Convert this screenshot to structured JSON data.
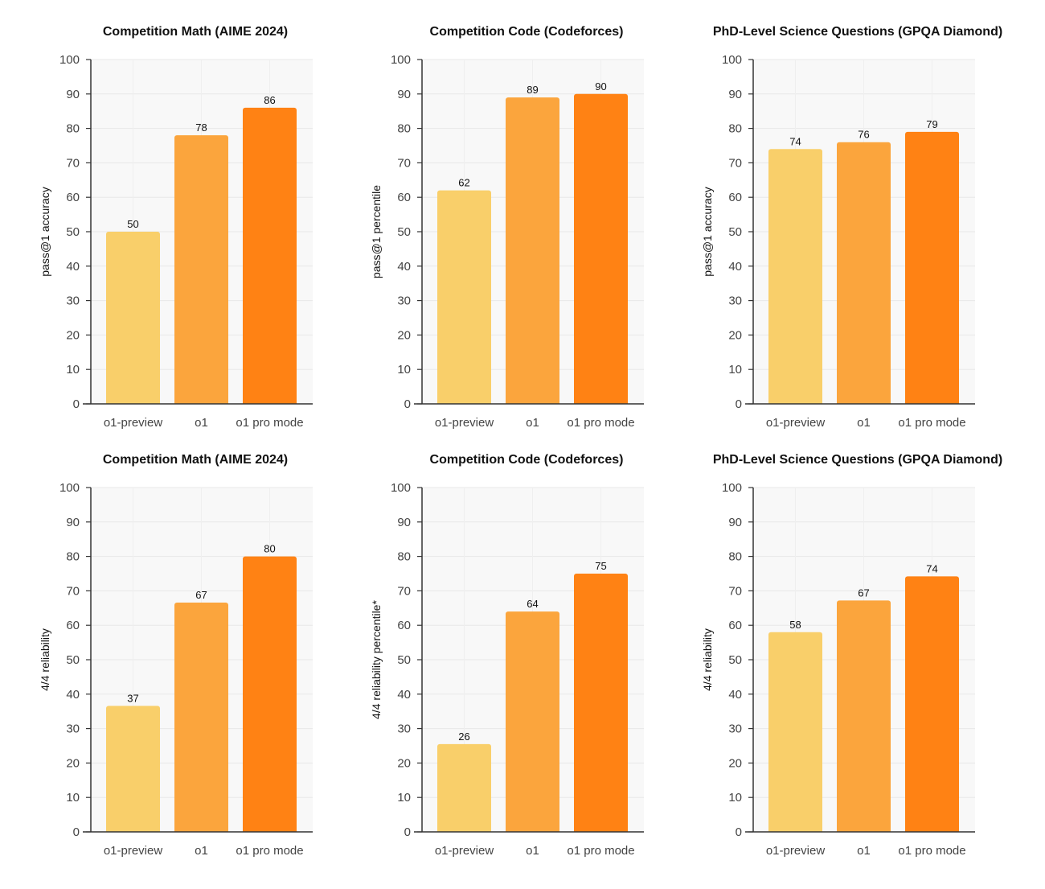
{
  "colors": {
    "o1-preview": "#F9CF6A",
    "o1": "#FBA53D",
    "o1 pro mode": "#FF8214",
    "plot_bg": "#F8F8F8",
    "grid": "#E8E8E8",
    "axis": "#333333",
    "text": "#111111",
    "tick_text": "#444444"
  },
  "chart_data": [
    {
      "type": "bar",
      "title": "Competition Math (AIME 2024)",
      "ylabel": "pass@1 accuracy",
      "xlabel": "",
      "categories": [
        "o1-preview",
        "o1",
        "o1 pro mode"
      ],
      "values": [
        50,
        78,
        86
      ],
      "data_labels": [
        "50",
        "78",
        "86"
      ],
      "ylim": [
        0,
        100
      ],
      "yticks": [
        0,
        10,
        20,
        30,
        40,
        50,
        60,
        70,
        80,
        90,
        100
      ],
      "grid": true
    },
    {
      "type": "bar",
      "title": "Competition Code (Codeforces)",
      "ylabel": "pass@1 percentile",
      "xlabel": "",
      "categories": [
        "o1-preview",
        "o1",
        "o1 pro mode"
      ],
      "values": [
        62,
        89,
        90
      ],
      "data_labels": [
        "62",
        "89",
        "90"
      ],
      "ylim": [
        0,
        100
      ],
      "yticks": [
        0,
        10,
        20,
        30,
        40,
        50,
        60,
        70,
        80,
        90,
        100
      ],
      "grid": true
    },
    {
      "type": "bar",
      "title": "PhD-Level Science Questions (GPQA Diamond)",
      "ylabel": "pass@1 accuracy",
      "xlabel": "",
      "categories": [
        "o1-preview",
        "o1",
        "o1 pro mode"
      ],
      "values": [
        74,
        76,
        79
      ],
      "data_labels": [
        "74",
        "76",
        "79"
      ],
      "ylim": [
        0,
        100
      ],
      "yticks": [
        0,
        10,
        20,
        30,
        40,
        50,
        60,
        70,
        80,
        90,
        100
      ],
      "grid": true
    },
    {
      "type": "bar",
      "title": "Competition Math (AIME 2024)",
      "ylabel": "4/4 reliability",
      "xlabel": "",
      "categories": [
        "o1-preview",
        "o1",
        "o1 pro mode"
      ],
      "values": [
        36.6,
        66.6,
        80
      ],
      "data_labels": [
        "37",
        "67",
        "80"
      ],
      "ylim": [
        0,
        100
      ],
      "yticks": [
        0,
        10,
        20,
        30,
        40,
        50,
        60,
        70,
        80,
        90,
        100
      ],
      "grid": true
    },
    {
      "type": "bar",
      "title": "Competition Code (Codeforces)",
      "ylabel": "4/4 reliability percentile*",
      "xlabel": "",
      "categories": [
        "o1-preview",
        "o1",
        "o1 pro mode"
      ],
      "values": [
        25.5,
        64,
        75
      ],
      "data_labels": [
        "26",
        "64",
        "75"
      ],
      "ylim": [
        0,
        100
      ],
      "yticks": [
        0,
        10,
        20,
        30,
        40,
        50,
        60,
        70,
        80,
        90,
        100
      ],
      "grid": true
    },
    {
      "type": "bar",
      "title": "PhD-Level Science Questions (GPQA Diamond)",
      "ylabel": "4/4 reliability",
      "xlabel": "",
      "categories": [
        "o1-preview",
        "o1",
        "o1 pro mode"
      ],
      "values": [
        58,
        67.2,
        74.2
      ],
      "data_labels": [
        "58",
        "67",
        "74"
      ],
      "ylim": [
        0,
        100
      ],
      "yticks": [
        0,
        10,
        20,
        30,
        40,
        50,
        60,
        70,
        80,
        90,
        100
      ],
      "grid": true
    }
  ]
}
